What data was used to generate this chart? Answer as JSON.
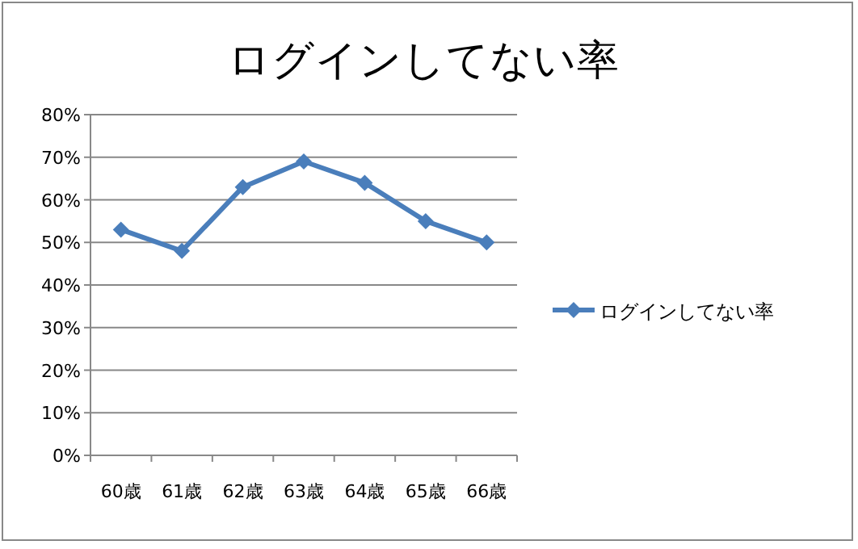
{
  "chart_data": {
    "type": "line",
    "title": "ログインしてない率",
    "categories": [
      "60歳",
      "61歳",
      "62歳",
      "63歳",
      "64歳",
      "65歳",
      "66歳"
    ],
    "series": [
      {
        "name": "ログインしてない率",
        "color": "#4a7ebb",
        "values": [
          53,
          48,
          63,
          69,
          64,
          55,
          50
        ]
      }
    ],
    "ylim": [
      0,
      80
    ],
    "yticks": [
      {
        "value": 0,
        "label": "0%"
      },
      {
        "value": 10,
        "label": "10%"
      },
      {
        "value": 20,
        "label": "20%"
      },
      {
        "value": 30,
        "label": "30%"
      },
      {
        "value": 40,
        "label": "40%"
      },
      {
        "value": 50,
        "label": "50%"
      },
      {
        "value": 60,
        "label": "60%"
      },
      {
        "value": 70,
        "label": "70%"
      },
      {
        "value": 80,
        "label": "80%"
      }
    ],
    "grid": "y",
    "legend": "right",
    "marker": "diamond",
    "line_style": "solid"
  }
}
